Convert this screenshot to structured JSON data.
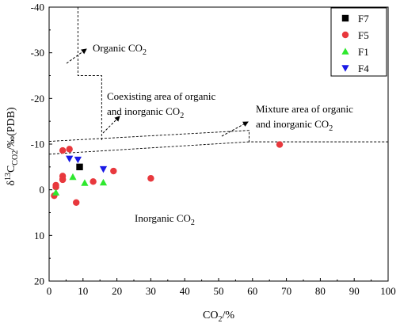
{
  "chart_data": {
    "type": "scatter",
    "xlabel": {
      "main": "CO",
      "sub": "2",
      "tail": "/%"
    },
    "ylabel": {
      "delta": "δ",
      "sup": "13",
      "c": "C",
      "sub": "CO2",
      "tail": "/‰(PDB)"
    },
    "xlim": [
      0,
      100
    ],
    "ylim": [
      20,
      -40
    ],
    "y_axis_inverted": true,
    "xticks": [
      "0",
      "10",
      "20",
      "30",
      "40",
      "50",
      "60",
      "70",
      "80",
      "90",
      "100"
    ],
    "yticks": [
      "-40",
      "-30",
      "-20",
      "-10",
      "0",
      "10",
      "20"
    ],
    "grid": false,
    "legend_position": "top-right",
    "series": [
      {
        "name": "F7",
        "marker": "square",
        "color": "#000000",
        "x": [
          9
        ],
        "y": [
          -5
        ]
      },
      {
        "name": "F5",
        "marker": "circle",
        "color": "#e8383d",
        "x": [
          1.5,
          2,
          2,
          4,
          4,
          4,
          4,
          6,
          8,
          13,
          19,
          30,
          68
        ],
        "y": [
          1.3,
          -1,
          -0.6,
          -8.6,
          -3,
          -2.3,
          -2.2,
          -8.9,
          2.8,
          -1.8,
          -4.1,
          -2.5,
          -9.9
        ]
      },
      {
        "name": "F1",
        "marker": "triangle-up",
        "color": "#2ee82e",
        "x": [
          2,
          7,
          10.5,
          16
        ],
        "y": [
          0.6,
          -2.8,
          -1.5,
          -1.6
        ]
      },
      {
        "name": "F4",
        "marker": "triangle-down",
        "color": "#1a1ae6",
        "x": [
          6,
          8.5,
          16
        ],
        "y": [
          -6.8,
          -6.6,
          -4.5
        ]
      }
    ],
    "boundaries": [
      {
        "style": "dashed",
        "points": [
          [
            8.5,
            -40
          ],
          [
            8.5,
            -25
          ],
          [
            15.5,
            -25
          ],
          [
            15.5,
            -10.6
          ]
        ]
      },
      {
        "style": "dashed",
        "points": [
          [
            0,
            -10.6
          ],
          [
            59,
            -13
          ],
          [
            59,
            -10.5
          ],
          [
            100,
            -10.5
          ]
        ]
      },
      {
        "style": "dashed",
        "points": [
          [
            0,
            -7.8
          ],
          [
            59,
            -10.5
          ]
        ]
      }
    ],
    "annotations": [
      {
        "id": "organic",
        "parts": [
          "Organic CO",
          "2"
        ]
      },
      {
        "id": "coexisting-1",
        "parts": [
          "Coexisting area of organic"
        ]
      },
      {
        "id": "coexisting-2",
        "parts": [
          "and inorganic CO",
          "2"
        ]
      },
      {
        "id": "mixture-1",
        "parts": [
          "Mixture area of organic"
        ]
      },
      {
        "id": "mixture-2",
        "parts": [
          "and inorganic CO",
          "2"
        ]
      },
      {
        "id": "inorganic",
        "parts": [
          "Inorganic CO",
          "2"
        ]
      }
    ]
  }
}
